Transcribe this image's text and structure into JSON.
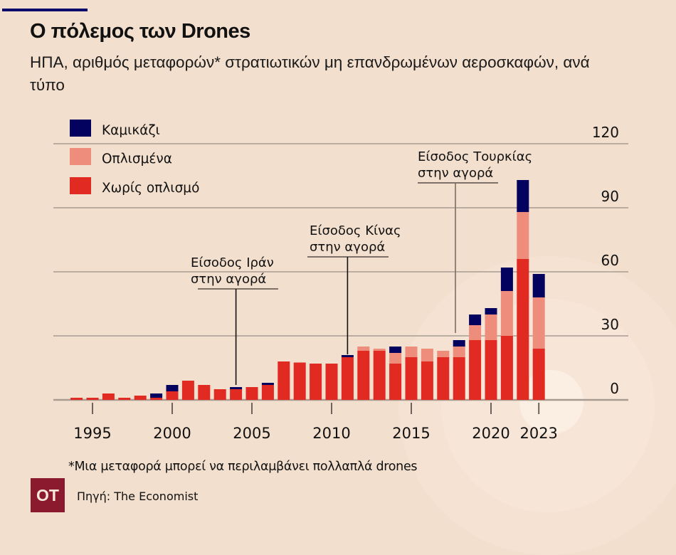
{
  "header": {
    "title": "Ο πόλεμος των Drones",
    "subtitle": "ΗΠΑ, αριθμός μεταφορών* στρατιωτικών μη επανδρωμένων αεροσκαφών, ανά τύπο"
  },
  "colors": {
    "kamikaze": "#03035f",
    "armed": "#ee8d7b",
    "unarmed": "#e02a22",
    "accent_bar": "#0a0a6a",
    "logo_bg": "#8b1a2e",
    "background": "#f3dfcd"
  },
  "chart_data": {
    "type": "bar",
    "stacked": true,
    "title": "Ο πόλεμος των Drones",
    "subtitle": "ΗΠΑ, αριθμός μεταφορών* στρατιωτικών μη επανδρωμένων αεροσκαφών, ανά τύπο",
    "xlabel": "",
    "ylabel": "",
    "ylim": [
      0,
      120
    ],
    "yticks": [
      0,
      30,
      60,
      90,
      120
    ],
    "xticks": [
      1995,
      2000,
      2005,
      2010,
      2015,
      2020,
      2023
    ],
    "grid": true,
    "legend_position": "top-left",
    "y_axis_side": "right",
    "categories": [
      1994,
      1995,
      1996,
      1997,
      1998,
      1999,
      2000,
      2001,
      2002,
      2003,
      2004,
      2005,
      2006,
      2007,
      2008,
      2009,
      2010,
      2011,
      2012,
      2013,
      2014,
      2015,
      2016,
      2017,
      2018,
      2019,
      2020,
      2021,
      2022,
      2023
    ],
    "series": [
      {
        "name": "Χωρίς οπλισμό",
        "color": "#e02a22",
        "values": [
          1,
          1,
          3,
          1,
          2,
          1,
          4,
          9,
          7,
          5,
          5,
          6,
          7,
          18,
          17.5,
          17,
          17,
          20,
          23,
          23,
          17,
          20,
          18,
          20,
          20,
          28,
          28,
          30,
          66,
          24
        ]
      },
      {
        "name": "Οπλισμένα",
        "color": "#ee8d7b",
        "values": [
          0,
          0,
          0,
          0,
          0,
          0,
          0,
          0,
          0,
          0,
          0,
          0,
          0,
          0,
          0,
          0,
          0,
          0,
          2,
          1,
          5,
          5,
          6,
          3,
          5,
          7,
          12,
          21,
          22,
          24
        ]
      },
      {
        "name": "Καμικάζι",
        "color": "#03035f",
        "values": [
          0,
          0,
          0,
          0,
          0,
          2,
          3,
          0,
          0,
          0,
          1,
          0,
          1,
          0,
          0,
          0,
          0,
          1,
          0,
          0,
          3,
          0,
          0,
          0,
          3,
          5,
          3,
          11,
          15,
          11
        ]
      }
    ],
    "legend": [
      "Καμικάζι",
      "Οπλισμένα",
      "Χωρίς οπλισμό"
    ],
    "annotations": [
      {
        "year": 2004,
        "line1": "Είσοδος Ιράν",
        "line2": "στην αγορά"
      },
      {
        "year": 2011,
        "line1": "Είσοδος Κίνας",
        "line2": "στην αγορά"
      },
      {
        "year": 2018,
        "line1": "Είσοδος Τουρκίας",
        "line2": "στην αγορά"
      }
    ]
  },
  "footer": {
    "footnote": "*Μια μεταφορά μπορεί να περιλαμβάνει πολλαπλά drones",
    "source": "Πηγή: The Economist",
    "logo_text": "ΟΤ"
  }
}
